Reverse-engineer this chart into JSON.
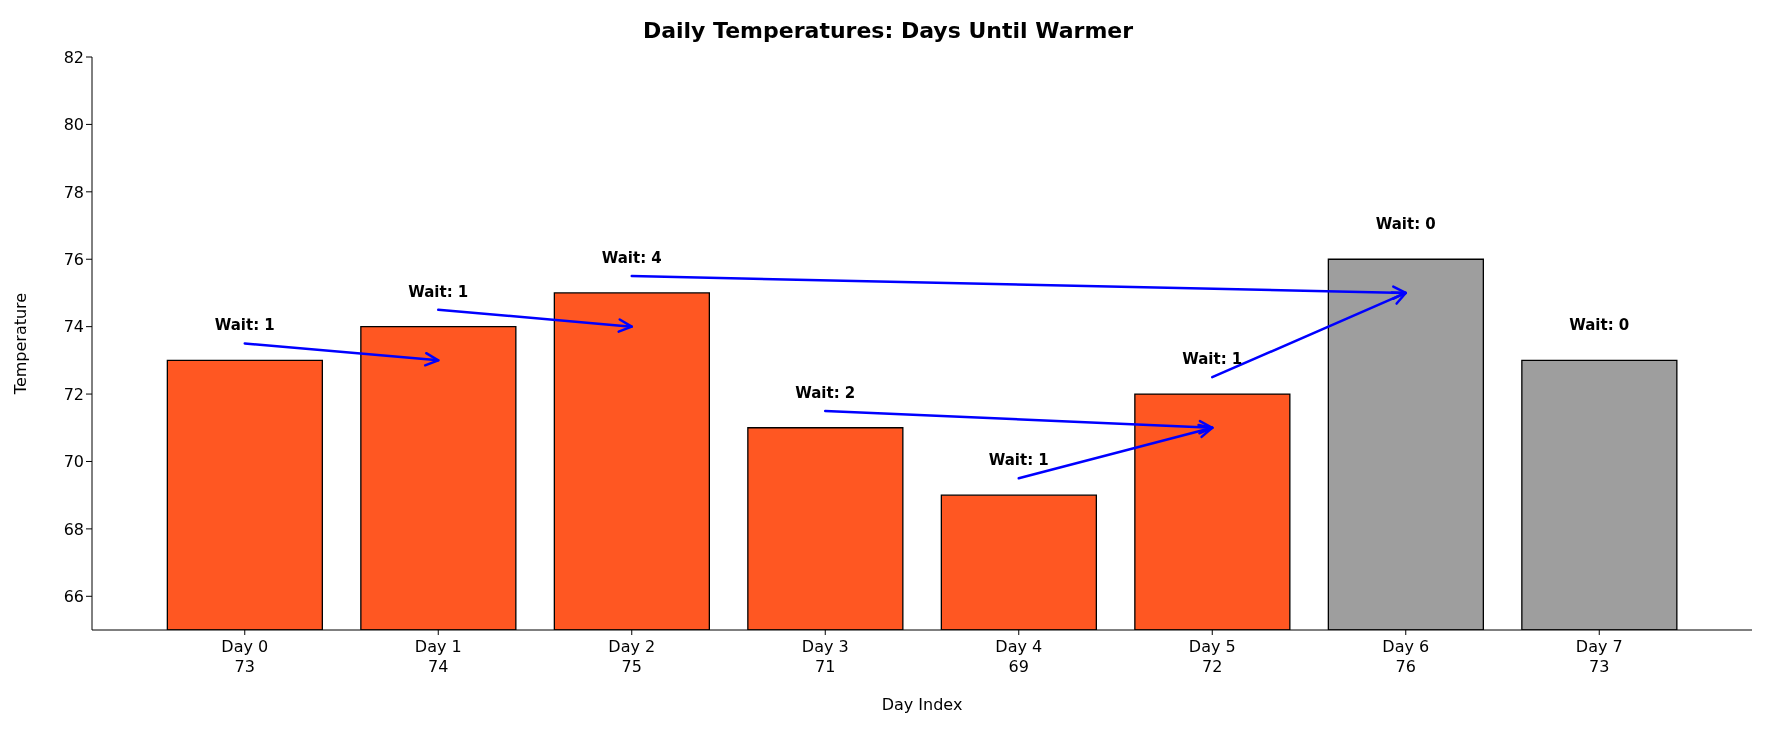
{
  "chart_data": {
    "type": "bar",
    "title": "Daily Temperatures: Days Until Warmer",
    "xlabel": "Day Index",
    "ylabel": "Temperature",
    "categories": [
      "Day 0",
      "Day 1",
      "Day 2",
      "Day 3",
      "Day 4",
      "Day 5",
      "Day 6",
      "Day 7"
    ],
    "values": [
      73,
      74,
      75,
      71,
      69,
      72,
      76,
      73
    ],
    "colors": [
      "#ff5722",
      "#ff5722",
      "#ff5722",
      "#ff5722",
      "#ff5722",
      "#ff5722",
      "#9e9e9e",
      "#9e9e9e"
    ],
    "data_labels": true,
    "ylim": [
      65,
      82
    ],
    "yticks": [
      66,
      68,
      70,
      72,
      74,
      76,
      78,
      80,
      82
    ],
    "annotations": [
      "Wait: 1",
      "Wait: 1",
      "Wait: 4",
      "Wait: 2",
      "Wait: 1",
      "Wait: 1",
      "Wait: 0",
      "Wait: 0"
    ]
  }
}
